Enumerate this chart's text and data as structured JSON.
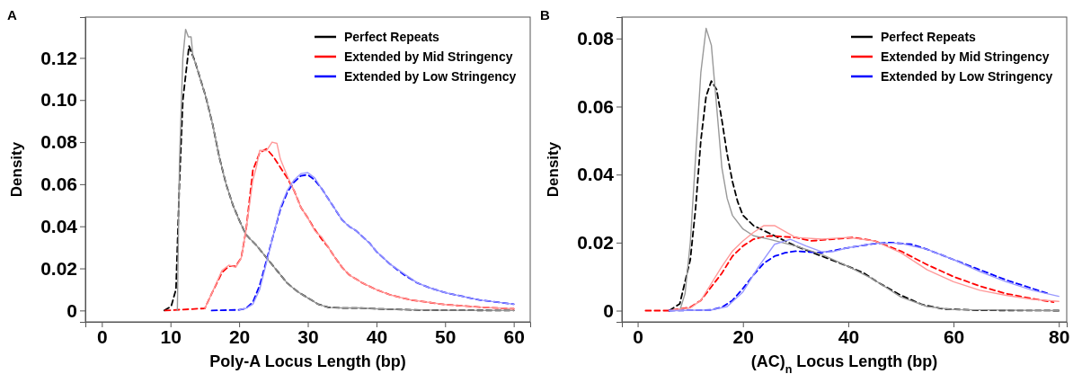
{
  "chart_data": [
    {
      "type": "line",
      "title": "A",
      "xlabel": "Poly-A Locus Length (bp)",
      "ylabel": "Density",
      "xlim": [
        -2.4,
        62.4
      ],
      "ylim": [
        -0.0054,
        0.1394
      ],
      "xticks": [
        0,
        10,
        20,
        30,
        40,
        50,
        60
      ],
      "yticks": [
        0,
        0.02,
        0.04,
        0.06,
        0.08,
        {
          "value": 0.1,
          "label": "0.10"
        },
        0.12
      ],
      "legend": "top right",
      "grid": false,
      "series": [
        {
          "name": "Perfect Repeats",
          "color": "#000000",
          "line_style": "dashed",
          "x": [
            9.1,
            10.1,
            10.8,
            11.3,
            11.8,
            12.7,
            13.6,
            15.1,
            16.1,
            17.1,
            18.1,
            19.1,
            20,
            21,
            22.5,
            24,
            25.5,
            27,
            28.5,
            30,
            31.5,
            33,
            35,
            37.5,
            40,
            45,
            50,
            60
          ],
          "values": [
            0,
            0.002,
            0.01,
            0.06,
            0.1,
            0.1257,
            0.118,
            0.102,
            0.089,
            0.073,
            0.06,
            0.05,
            0.043,
            0.036,
            0.031,
            0.025,
            0.019,
            0.013,
            0.009,
            0.006,
            0.003,
            0.0015,
            0.0012,
            0.0012,
            0.0008,
            0.0003,
            0.0001,
            0
          ]
        },
        {
          "name": "Extended by Mid Stringency",
          "color": "#ff0000",
          "line_style": "dashed",
          "x": [
            9.2,
            15,
            16,
            17.5,
            18.5,
            19.5,
            20.3,
            21,
            22,
            23,
            24,
            25,
            26,
            27,
            28,
            29,
            30,
            31,
            32,
            33,
            34,
            35,
            36,
            38,
            40,
            42,
            45,
            50,
            55,
            60
          ],
          "values": [
            0,
            0.001,
            0.008,
            0.018,
            0.021,
            0.021,
            0.025,
            0.038,
            0.0666,
            0.075,
            0.0768,
            0.073,
            0.068,
            0.063,
            0.057,
            0.049,
            0.044,
            0.0386,
            0.034,
            0.03,
            0.025,
            0.0205,
            0.017,
            0.013,
            0.0099,
            0.0074,
            0.005,
            0.0028,
            0.0016,
            0.0008
          ]
        },
        {
          "name": "Extended by Low Stringency",
          "color": "#0000ff",
          "line_style": "dashed",
          "x": [
            16,
            20,
            21,
            22,
            23,
            24,
            25,
            26,
            27,
            28,
            29,
            30,
            31,
            32,
            33,
            34,
            35,
            36,
            37,
            38,
            39,
            40,
            42,
            44,
            46,
            48,
            50,
            55,
            60
          ],
          "values": [
            0,
            0.0003,
            0.001,
            0.004,
            0.012,
            0.024,
            0.036,
            0.048,
            0.056,
            0.061,
            0.064,
            0.0645,
            0.062,
            0.058,
            0.053,
            0.048,
            0.043,
            0.04,
            0.038,
            0.035,
            0.032,
            0.028,
            0.022,
            0.017,
            0.013,
            0.0105,
            0.0085,
            0.005,
            0.003
          ]
        },
        {
          "color": "#999999",
          "line_style": "solid",
          "x": [
            11,
            11.3,
            11.8,
            12.2,
            12.6,
            13,
            13.3,
            13.6,
            15.1,
            16.1,
            17.1,
            18.1,
            19.1,
            20,
            21,
            22.5,
            24,
            25.5,
            27,
            28.5,
            30,
            31.5,
            33,
            35,
            37.5,
            40,
            45,
            50,
            60
          ],
          "values": [
            0,
            0.07,
            0.12,
            0.1336,
            0.13,
            0.13,
            0.12,
            0.118,
            0.102,
            0.089,
            0.073,
            0.06,
            0.05,
            0.043,
            0.036,
            0.031,
            0.025,
            0.019,
            0.013,
            0.009,
            0.006,
            0.003,
            0.0015,
            0.0012,
            0.0012,
            0.0008,
            0.0003,
            0.0001,
            0
          ]
        },
        {
          "color": "#ff9999",
          "line_style": "solid",
          "x": [
            15,
            16,
            17.5,
            18.5,
            19.5,
            20.3,
            21,
            22,
            22.5,
            23,
            24,
            24.8,
            25.5,
            26,
            27,
            28,
            29,
            30,
            31,
            32,
            33,
            34,
            35,
            36,
            38,
            40,
            42,
            45,
            50,
            55,
            60
          ],
          "values": [
            0.001,
            0.008,
            0.019,
            0.0215,
            0.0205,
            0.025,
            0.038,
            0.062,
            0.068,
            0.0761,
            0.076,
            0.08,
            0.0794,
            0.072,
            0.064,
            0.057,
            0.049,
            0.044,
            0.038,
            0.035,
            0.03,
            0.025,
            0.0205,
            0.017,
            0.013,
            0.0099,
            0.0074,
            0.005,
            0.0028,
            0.0016,
            0.0008
          ]
        },
        {
          "color": "#9999ff",
          "line_style": "solid",
          "x": [
            20,
            21,
            22,
            23,
            24,
            25,
            26,
            27,
            28,
            29,
            30,
            31,
            32,
            33,
            34,
            35,
            36,
            37,
            38,
            39,
            40,
            42,
            44,
            46,
            48,
            50,
            55,
            60
          ],
          "values": [
            0.0003,
            0.001,
            0.003,
            0.01,
            0.023,
            0.036,
            0.049,
            0.057,
            0.062,
            0.065,
            0.0655,
            0.063,
            0.058,
            0.053,
            0.048,
            0.043,
            0.04,
            0.038,
            0.035,
            0.032,
            0.028,
            0.022,
            0.0175,
            0.013,
            0.0105,
            0.0085,
            0.005,
            0.003
          ]
        }
      ]
    },
    {
      "type": "line",
      "title": "B",
      "xlabel": "(AC)$_{n}$ Locus Length (bp)",
      "ylabel": "Density",
      "xlim": [
        -3,
        81.5
      ],
      "ylim": [
        -0.0033,
        0.0863
      ],
      "xticks": [
        0,
        20,
        40,
        60,
        80
      ],
      "yticks": [
        0,
        0.02,
        0.04,
        0.06,
        0.08
      ],
      "legend": "top right",
      "grid": false,
      "series": [
        {
          "name": "Perfect Repeats",
          "color": "#000000",
          "line_style": "dashed",
          "x": [
            6,
            8,
            10,
            11,
            12,
            13,
            14,
            15,
            16,
            17,
            18,
            19,
            20,
            22,
            24,
            26,
            30,
            35,
            40,
            43,
            46,
            50,
            54,
            58,
            65,
            80
          ],
          "values": [
            0,
            0.002,
            0.015,
            0.03,
            0.05,
            0.063,
            0.0675,
            0.065,
            0.056,
            0.046,
            0.038,
            0.032,
            0.028,
            0.025,
            0.0235,
            0.022,
            0.019,
            0.016,
            0.013,
            0.011,
            0.008,
            0.0045,
            0.0018,
            0.0005,
            0.0001,
            0
          ]
        },
        {
          "name": "Extended by Mid Stringency",
          "color": "#ff0000",
          "line_style": "dashed",
          "x": [
            1.5,
            6,
            10,
            12,
            14,
            16,
            18,
            20,
            22,
            25,
            30,
            33,
            37,
            41,
            45,
            50,
            55,
            60,
            65,
            70,
            75,
            79
          ],
          "values": [
            0,
            0,
            0.001,
            0.003,
            0.007,
            0.011,
            0.016,
            0.019,
            0.021,
            0.022,
            0.0215,
            0.0205,
            0.021,
            0.0215,
            0.0205,
            0.0175,
            0.0135,
            0.01,
            0.0072,
            0.005,
            0.0035,
            0.0025
          ]
        },
        {
          "name": "Extended by Low Stringency",
          "color": "#0000ff",
          "line_style": "dashed",
          "x": [
            6,
            14,
            16,
            18,
            20,
            22,
            24,
            26,
            28,
            30,
            35,
            40,
            45,
            48,
            52,
            55,
            60,
            65,
            70,
            75,
            78
          ],
          "values": [
            0,
            0.0002,
            0.001,
            0.003,
            0.0065,
            0.0105,
            0.014,
            0.016,
            0.017,
            0.0175,
            0.017,
            0.0185,
            0.0197,
            0.02,
            0.0195,
            0.018,
            0.015,
            0.012,
            0.009,
            0.0065,
            0.005
          ]
        },
        {
          "color": "#999999",
          "line_style": "solid",
          "x": [
            8,
            9,
            10,
            11,
            12,
            13,
            14,
            15,
            16,
            17,
            18,
            20,
            22,
            25,
            30,
            35,
            40,
            45,
            50,
            55,
            60,
            80
          ],
          "values": [
            0,
            0.005,
            0.02,
            0.045,
            0.07,
            0.083,
            0.078,
            0.06,
            0.042,
            0.033,
            0.028,
            0.024,
            0.022,
            0.021,
            0.019,
            0.0165,
            0.013,
            0.009,
            0.004,
            0.0012,
            0.0003,
            0
          ]
        },
        {
          "color": "#ff9999",
          "line_style": "solid",
          "x": [
            6,
            10,
            12,
            14,
            16,
            18,
            20,
            22,
            24,
            26,
            30,
            35,
            40,
            45,
            50,
            55,
            60,
            65,
            70,
            75,
            80
          ],
          "values": [
            0,
            0.0008,
            0.003,
            0.008,
            0.013,
            0.0175,
            0.0205,
            0.023,
            0.025,
            0.025,
            0.0215,
            0.021,
            0.0215,
            0.0205,
            0.017,
            0.012,
            0.0085,
            0.006,
            0.0045,
            0.0033,
            0.0027
          ]
        },
        {
          "color": "#9999ff",
          "line_style": "solid",
          "x": [
            6,
            14,
            17,
            20,
            23,
            26,
            29,
            32,
            35,
            37,
            40,
            45,
            50,
            55,
            60,
            65,
            70,
            75,
            80
          ],
          "values": [
            0,
            0.0002,
            0.0012,
            0.0055,
            0.013,
            0.0195,
            0.021,
            0.019,
            0.0173,
            0.0173,
            0.0185,
            0.0198,
            0.0198,
            0.018,
            0.015,
            0.0115,
            0.0085,
            0.006,
            0.0042
          ]
        }
      ]
    }
  ]
}
